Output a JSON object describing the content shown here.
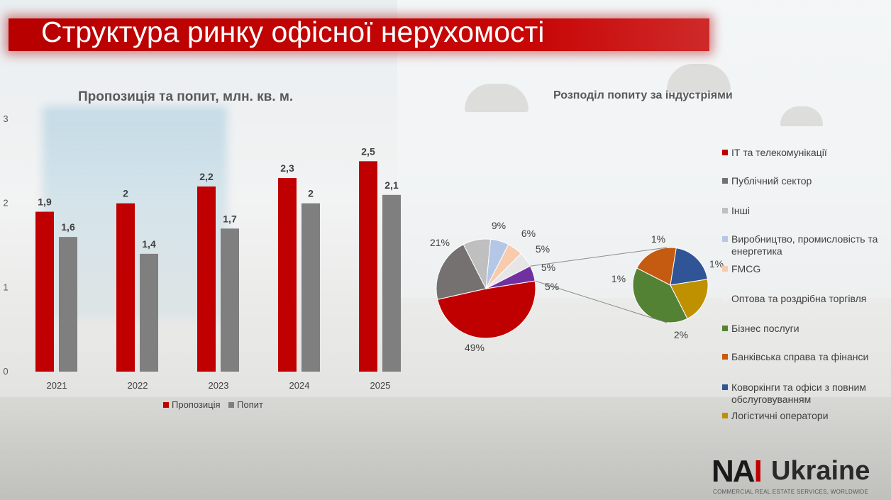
{
  "title": "Структура ринку офісної нерухомості",
  "colors": {
    "banner": "#c00000",
    "supply": "#c00000",
    "demand": "#7f7f7f",
    "text": "#595959"
  },
  "chart_data": [
    {
      "type": "bar",
      "title": "Пропозиція та попит, млн. кв. м.",
      "categories": [
        "2021",
        "2022",
        "2023",
        "2024",
        "2025"
      ],
      "series": [
        {
          "name": "Пропозиція",
          "color": "#c00000",
          "values": [
            1.9,
            2,
            2.2,
            2.3,
            2.5
          ],
          "labels": [
            "1,9",
            "2",
            "2,2",
            "2,3",
            "2,5"
          ]
        },
        {
          "name": "Попит",
          "color": "#7f7f7f",
          "values": [
            1.6,
            1.4,
            1.7,
            2,
            2.1
          ],
          "labels": [
            "1,6",
            "1,4",
            "1,7",
            "2",
            "2,1"
          ]
        }
      ],
      "ylim": [
        0,
        3
      ],
      "yticks": [
        "0",
        "1",
        "2",
        "3"
      ],
      "legend": "bottom"
    },
    {
      "type": "pie",
      "title": "Розподіл попиту за індустріями",
      "slices": [
        {
          "label": "ІТ та телекомунікації",
          "value": 49,
          "text": "49%",
          "color": "#c00000"
        },
        {
          "label": "Публічний сектор",
          "value": 21,
          "text": "21%",
          "color": "#767171"
        },
        {
          "label": "Інші",
          "value": 9,
          "text": "9%",
          "color": "#bfbfbf"
        },
        {
          "label": "Виробництво, промисловість та енергетика",
          "value": 6,
          "text": "6%",
          "color": "#b4c7e7"
        },
        {
          "label": "FMCG",
          "value": 5,
          "text": "5%",
          "color": "#f8cbad"
        },
        {
          "label": "Оптова та роздрібна торгівля",
          "value": 5,
          "text": "5%",
          "color": "#e7e6e6"
        },
        {
          "label": "",
          "value": 5,
          "text": "5%",
          "color": "#7030a0"
        }
      ],
      "sub_pie": {
        "slices": [
          {
            "label": "Бізнес послуги",
            "value": 2,
            "text": "2%",
            "color": "#548235"
          },
          {
            "label": "Банківська справа та фінанси",
            "value": 1,
            "text": "1%",
            "color": "#c55a11"
          },
          {
            "label": "Коворкінги та офіси з повним обслуговуванням",
            "value": 1,
            "text": "1%",
            "color": "#2f5597"
          },
          {
            "label": "Логістичні оператори",
            "value": 1,
            "text": "1%",
            "color": "#bf9000"
          }
        ]
      },
      "legend": "right"
    }
  ],
  "legend_items": [
    {
      "label": "ІТ та телекомунікації",
      "color": "#c00000"
    },
    {
      "label": "Публічний сектор",
      "color": "#767171"
    },
    {
      "label": "Інші",
      "color": "#bfbfbf"
    },
    {
      "label": "Виробництво, промисловість та енергетика",
      "color": "#b4c7e7"
    },
    {
      "label": "FMCG",
      "color": "#f8cbad"
    },
    {
      "label": "Оптова та роздрібна торгівля",
      "color": "#eeeeee"
    },
    {
      "label": "Бізнес послуги",
      "color": "#548235"
    },
    {
      "label": "Банківська справа та фінанси",
      "color": "#c55a11"
    },
    {
      "label": "Коворкінги та офіси з повним обслуговуванням",
      "color": "#2f5597"
    },
    {
      "label": "Логістичні оператори",
      "color": "#bf9000"
    }
  ],
  "logo": {
    "mark_left": "NA",
    "mark_right": "I",
    "word": "Ukraine",
    "tagline": "COMMERCIAL REAL ESTATE SERVICES, WORLDWIDE"
  }
}
